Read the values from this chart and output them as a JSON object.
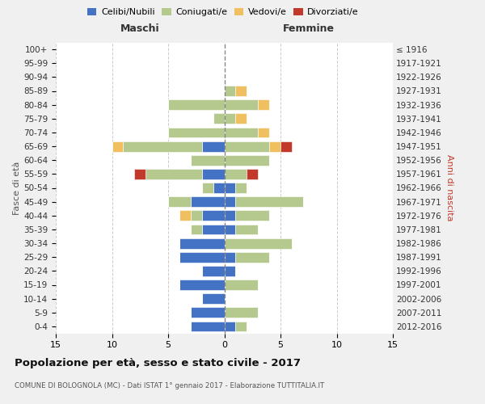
{
  "age_groups": [
    "0-4",
    "5-9",
    "10-14",
    "15-19",
    "20-24",
    "25-29",
    "30-34",
    "35-39",
    "40-44",
    "45-49",
    "50-54",
    "55-59",
    "60-64",
    "65-69",
    "70-74",
    "75-79",
    "80-84",
    "85-89",
    "90-94",
    "95-99",
    "100+"
  ],
  "birth_years": [
    "2012-2016",
    "2007-2011",
    "2002-2006",
    "1997-2001",
    "1992-1996",
    "1987-1991",
    "1982-1986",
    "1977-1981",
    "1972-1976",
    "1967-1971",
    "1962-1966",
    "1957-1961",
    "1952-1956",
    "1947-1951",
    "1942-1946",
    "1937-1941",
    "1932-1936",
    "1927-1931",
    "1922-1926",
    "1917-1921",
    "≤ 1916"
  ],
  "male": {
    "celibi": [
      3,
      3,
      2,
      4,
      2,
      4,
      4,
      2,
      2,
      3,
      1,
      2,
      0,
      2,
      0,
      0,
      0,
      0,
      0,
      0,
      0
    ],
    "coniugati": [
      0,
      0,
      0,
      0,
      0,
      0,
      0,
      1,
      1,
      2,
      1,
      5,
      3,
      7,
      5,
      1,
      5,
      0,
      0,
      0,
      0
    ],
    "vedovi": [
      0,
      0,
      0,
      0,
      0,
      0,
      0,
      0,
      1,
      0,
      0,
      0,
      0,
      1,
      0,
      0,
      0,
      0,
      0,
      0,
      0
    ],
    "divorziati": [
      0,
      0,
      0,
      0,
      0,
      0,
      0,
      0,
      0,
      0,
      0,
      1,
      0,
      0,
      0,
      0,
      0,
      0,
      0,
      0,
      0
    ]
  },
  "female": {
    "nubili": [
      1,
      0,
      0,
      0,
      1,
      1,
      0,
      1,
      1,
      1,
      1,
      0,
      0,
      0,
      0,
      0,
      0,
      0,
      0,
      0,
      0
    ],
    "coniugate": [
      1,
      3,
      0,
      3,
      0,
      3,
      6,
      2,
      3,
      6,
      1,
      2,
      4,
      4,
      3,
      1,
      3,
      1,
      0,
      0,
      0
    ],
    "vedove": [
      0,
      0,
      0,
      0,
      0,
      0,
      0,
      0,
      0,
      0,
      0,
      0,
      0,
      1,
      1,
      1,
      1,
      1,
      0,
      0,
      0
    ],
    "divorziate": [
      0,
      0,
      0,
      0,
      0,
      0,
      0,
      0,
      0,
      0,
      0,
      1,
      0,
      1,
      0,
      0,
      0,
      0,
      0,
      0,
      0
    ]
  },
  "colors": {
    "celibi_nubili": "#4472c4",
    "coniugati": "#b5c98e",
    "vedovi": "#f0c060",
    "divorziati": "#c0392b"
  },
  "title": "Popolazione per età, sesso e stato civile - 2017",
  "subtitle": "COMUNE DI BOLOGNOLA (MC) - Dati ISTAT 1° gennaio 2017 - Elaborazione TUTTITALIA.IT",
  "xlabel_left": "Maschi",
  "xlabel_right": "Femmine",
  "ylabel_left": "Fasce di età",
  "ylabel_right": "Anni di nascita",
  "xlim": 15,
  "bg_color": "#f0f0f0",
  "plot_bg": "#ffffff"
}
